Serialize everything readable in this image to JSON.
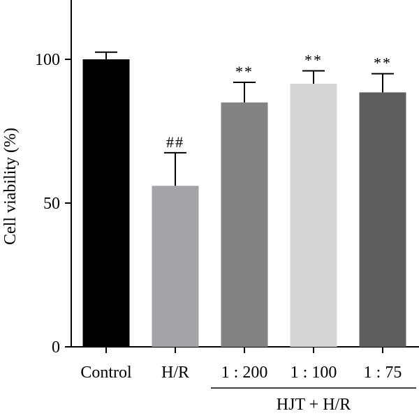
{
  "chart_data": {
    "type": "bar",
    "ylabel": "Cell viability (%)",
    "yticks": [
      0,
      50,
      100
    ],
    "ylim": [
      0,
      120
    ],
    "categories": [
      "Control",
      "H/R",
      "1 : 200",
      "1 : 100",
      "1 : 75"
    ],
    "values": [
      100,
      56,
      85,
      91.5,
      88.5
    ],
    "error_upper": [
      102.5,
      67.5,
      92,
      96,
      95
    ],
    "significance": [
      "",
      "##",
      "**",
      "**",
      "**"
    ],
    "colors": [
      "#000000",
      "#a4a4a8",
      "#838383",
      "#d6d6d6",
      "#5e5e5e"
    ],
    "group": {
      "label": "HJT + H/R",
      "categories": [
        "1 : 200",
        "1 : 100",
        "1 : 75"
      ]
    }
  }
}
